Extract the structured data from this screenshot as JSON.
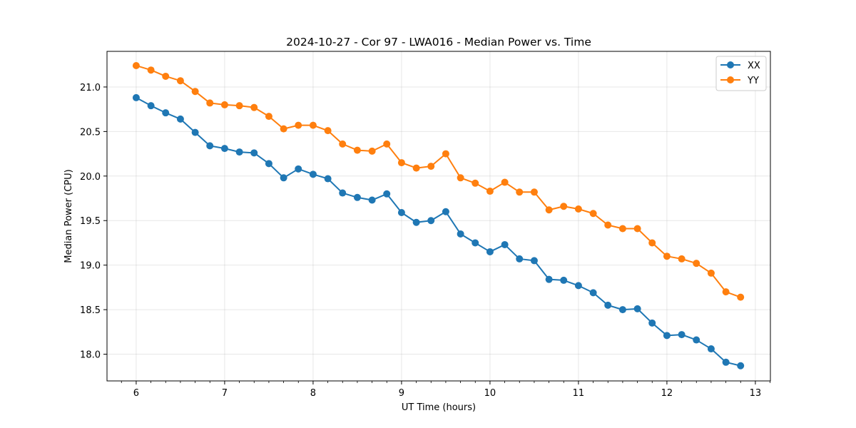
{
  "chart_data": {
    "type": "line",
    "title": "2024-10-27 - Cor 97 - LWA016 - Median Power vs. Time",
    "xlabel": "UT Time (hours)",
    "ylabel": "Median Power (CPU)",
    "xlim": [
      5.67,
      13.17
    ],
    "ylim": [
      17.7,
      21.4
    ],
    "xticks": [
      6,
      7,
      8,
      9,
      10,
      11,
      12,
      13
    ],
    "xtick_labels": [
      "6",
      "7",
      "8",
      "9",
      "10",
      "11",
      "12",
      "13"
    ],
    "yticks": [
      18.0,
      18.5,
      19.0,
      19.5,
      20.0,
      20.5,
      21.0
    ],
    "ytick_labels": [
      "18.0",
      "18.5",
      "19.0",
      "19.5",
      "20.0",
      "20.5",
      "21.0"
    ],
    "grid": true,
    "legend_position": "top-right",
    "x": [
      6.0,
      6.167,
      6.333,
      6.5,
      6.667,
      6.833,
      7.0,
      7.167,
      7.333,
      7.5,
      7.667,
      7.833,
      8.0,
      8.167,
      8.333,
      8.5,
      8.667,
      8.833,
      9.0,
      9.167,
      9.333,
      9.5,
      9.667,
      9.833,
      10.0,
      10.167,
      10.333,
      10.5,
      10.667,
      10.833,
      11.0,
      11.167,
      11.333,
      11.5,
      11.667,
      11.833,
      12.0,
      12.167,
      12.333,
      12.5,
      12.667,
      12.833
    ],
    "series": [
      {
        "name": "XX",
        "color": "#1f77b4",
        "values": [
          20.88,
          20.79,
          20.71,
          20.64,
          20.49,
          20.34,
          20.31,
          20.27,
          20.26,
          20.14,
          19.98,
          20.08,
          20.02,
          19.97,
          19.81,
          19.76,
          19.73,
          19.8,
          19.59,
          19.48,
          19.5,
          19.6,
          19.35,
          19.25,
          19.15,
          19.23,
          19.07,
          19.05,
          18.84,
          18.83,
          18.77,
          18.69,
          18.55,
          18.5,
          18.51,
          18.35,
          18.21,
          18.22,
          18.16,
          18.06,
          17.91,
          17.87
        ]
      },
      {
        "name": "YY",
        "color": "#ff7f0e",
        "values": [
          21.24,
          21.19,
          21.12,
          21.07,
          20.95,
          20.82,
          20.8,
          20.79,
          20.77,
          20.67,
          20.53,
          20.57,
          20.57,
          20.51,
          20.36,
          20.29,
          20.28,
          20.36,
          20.15,
          20.09,
          20.11,
          20.25,
          19.98,
          19.92,
          19.83,
          19.93,
          19.82,
          19.82,
          19.62,
          19.66,
          19.63,
          19.58,
          19.45,
          19.41,
          19.41,
          19.25,
          19.1,
          19.07,
          19.02,
          18.91,
          18.7,
          18.64
        ]
      }
    ]
  }
}
